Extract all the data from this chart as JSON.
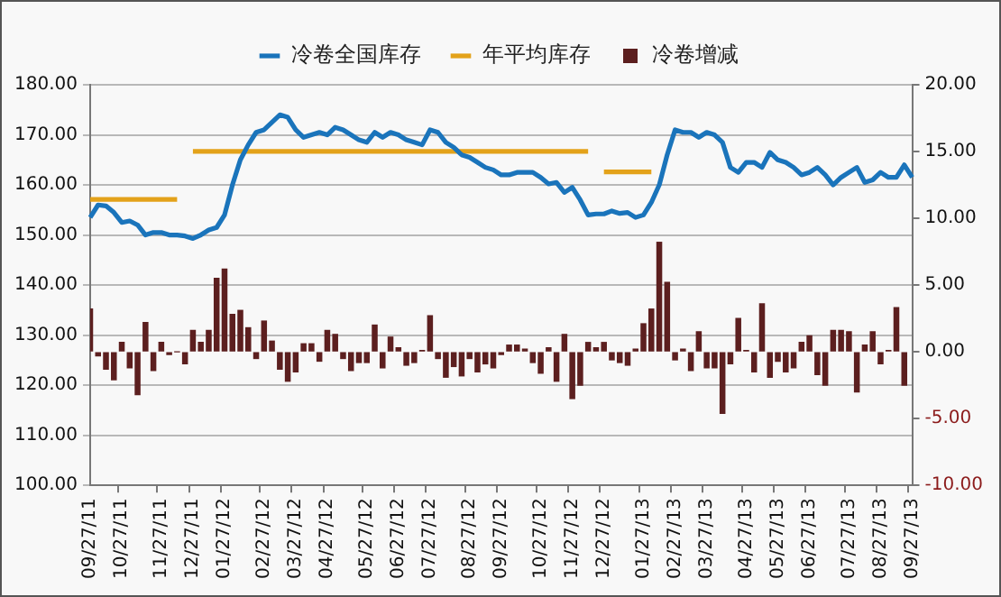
{
  "chart_data": {
    "type": "bar",
    "categories": [
      "09/27/11",
      null,
      null,
      null,
      "10/27/11",
      null,
      null,
      null,
      null,
      "11/27/11",
      null,
      null,
      null,
      "12/27/11",
      null,
      null,
      null,
      "01/27/12",
      null,
      null,
      null,
      null,
      "02/27/12",
      null,
      null,
      null,
      "03/27/12",
      null,
      null,
      null,
      "04/27/12",
      null,
      null,
      null,
      null,
      "05/27/12",
      null,
      null,
      null,
      "06/27/12",
      null,
      null,
      null,
      "07/27/12",
      null,
      null,
      null,
      null,
      "08/27/12",
      null,
      null,
      null,
      "09/27/12",
      null,
      null,
      null,
      null,
      "10/27/12",
      null,
      null,
      null,
      "11/27/12",
      null,
      null,
      null,
      "12/27/12",
      null,
      null,
      null,
      null,
      "01/27/13",
      null,
      null,
      null,
      "02/27/13",
      null,
      null,
      null,
      "03/27/13",
      null,
      null,
      null,
      null,
      "04/27/13",
      null,
      null,
      null,
      "05/27/13",
      null,
      null,
      null,
      "06/27/13",
      null,
      null,
      null,
      null,
      "07/27/13",
      null,
      null,
      null,
      "08/27/13",
      null,
      null,
      null,
      "09/27/13"
    ],
    "series": [
      {
        "name": "冷卷增减",
        "axis": "y2",
        "color": "#5c1f1f",
        "values": [
          3.2,
          -0.3,
          -1.3,
          -2.1,
          0.7,
          -1.2,
          -3.2,
          2.2,
          -1.4,
          0.7,
          -0.2,
          0,
          -0.9,
          1.6,
          0.7,
          1.6,
          5.5,
          6.2,
          2.8,
          3.1,
          1.8,
          -0.5,
          2.3,
          0.8,
          -1.3,
          -2.2,
          -1.5,
          0.6,
          0.6,
          -0.7,
          1.6,
          1.3,
          -0.5,
          -1.4,
          -0.8,
          -0.8,
          2.0,
          -1.2,
          1.1,
          0.3,
          -1.0,
          -0.8,
          0.1,
          2.7,
          -0.5,
          -1.9,
          -1.1,
          -1.8,
          -0.5,
          -1.5,
          -0.9,
          -1.2,
          -0.2,
          0.5,
          0.5,
          0.2,
          -0.8,
          -1.6,
          0.3,
          -2.2,
          1.3,
          -3.5,
          -2.5,
          0.7,
          0.3,
          0.7,
          -0.6,
          -0.8,
          -1.0,
          0.2,
          2.1,
          3.2,
          8.2,
          5.2,
          -0.6,
          0.2,
          -1.4,
          1.5,
          -1.2,
          -1.2,
          -4.6,
          -0.9,
          2.5,
          0.1,
          -1.5,
          3.6,
          -1.9,
          -0.7,
          -1.5,
          -1.2,
          0.7,
          1.2,
          -1.7,
          -2.5,
          1.6,
          1.6,
          1.5,
          -3.0,
          0.5,
          1.5,
          -0.9,
          0.1,
          3.3,
          -2.5,
          null
        ]
      },
      {
        "name": "冷卷全国库存",
        "type": "line",
        "color": "#1a74bb",
        "values": [
          153.5,
          156,
          155.8,
          154.5,
          152.5,
          152.8,
          152,
          150,
          150.5,
          150.5,
          150,
          150,
          149.8,
          149.3,
          150,
          151,
          151.5,
          154,
          160,
          165,
          168,
          170.5,
          171,
          172.5,
          174,
          173.5,
          171,
          169.5,
          170,
          170.5,
          170,
          171.5,
          171,
          170,
          169,
          168.5,
          170.5,
          169.5,
          170.5,
          170,
          169,
          168.5,
          168,
          171,
          170.5,
          168.5,
          167.5,
          166,
          165.5,
          164.5,
          163.5,
          163,
          162,
          162,
          162.5,
          162.5,
          162.5,
          161.5,
          160.2,
          160.5,
          158.5,
          159.5,
          157,
          154,
          154.2,
          154.2,
          154.8,
          154.3,
          154.5,
          153.5,
          154,
          156.5,
          160,
          166,
          171,
          170.5,
          170.5,
          169.5,
          170.5,
          170,
          168.5,
          163.5,
          162.5,
          164.5,
          164.5,
          163.5,
          166.5,
          165,
          164.5,
          163.5,
          162,
          162.5,
          163.5,
          162,
          160,
          161.5,
          162.5,
          163.5,
          160.5,
          161,
          162.5,
          161.5,
          161.5,
          164,
          161.5
        ]
      },
      {
        "name": "年平均库存",
        "type": "line",
        "color": "#e3a21a",
        "values": [
          157.1,
          157.1,
          157.1,
          157.1,
          157.1,
          157.1,
          157.1,
          157.1,
          157.1,
          157.1,
          157.1,
          157.1,
          null,
          166.7,
          166.7,
          166.7,
          166.7,
          166.7,
          166.7,
          166.7,
          166.7,
          166.7,
          166.7,
          166.7,
          166.7,
          166.7,
          166.7,
          166.7,
          166.7,
          166.7,
          166.7,
          166.7,
          166.7,
          166.7,
          166.7,
          166.7,
          166.7,
          166.7,
          166.7,
          166.7,
          166.7,
          166.7,
          166.7,
          166.7,
          166.7,
          166.7,
          166.7,
          166.7,
          166.7,
          166.7,
          166.7,
          166.7,
          166.7,
          166.7,
          166.7,
          166.7,
          166.7,
          166.7,
          166.7,
          166.7,
          166.7,
          166.7,
          166.7,
          166.7,
          null,
          162.6,
          162.6,
          162.6,
          162.6,
          162.6,
          162.6,
          162.6,
          null,
          null,
          null,
          null,
          null,
          null,
          null,
          null,
          null,
          null,
          null,
          null,
          null,
          null,
          null,
          null,
          null,
          null,
          null,
          null,
          null,
          null,
          null,
          null,
          null,
          null,
          null,
          null,
          null,
          null,
          null,
          null,
          null
        ]
      }
    ],
    "ylim": [
      100,
      180
    ],
    "yticks": [
      {
        "value": 100,
        "label": "100.00"
      },
      {
        "value": 110,
        "label": "110.00"
      },
      {
        "value": 120,
        "label": "120.00"
      },
      {
        "value": 130,
        "label": "130.00"
      },
      {
        "value": 140,
        "label": "140.00"
      },
      {
        "value": 150,
        "label": "150.00"
      },
      {
        "value": 160,
        "label": "160.00"
      },
      {
        "value": 170,
        "label": "170.00"
      },
      {
        "value": 180,
        "label": "180.00"
      }
    ],
    "y2lim": [
      -10,
      20
    ],
    "y2ticks": [
      {
        "value": -10,
        "label": "-10.00"
      },
      {
        "value": -5,
        "label": "-5.00"
      },
      {
        "value": 0,
        "label": "0.00"
      },
      {
        "value": 5,
        "label": "5.00"
      },
      {
        "value": 10,
        "label": "10.00"
      },
      {
        "value": 15,
        "label": "15.00"
      },
      {
        "value": 20,
        "label": "20.00"
      }
    ],
    "grid": "y",
    "legend": "top",
    "marker": "none",
    "line_style": "solid"
  }
}
